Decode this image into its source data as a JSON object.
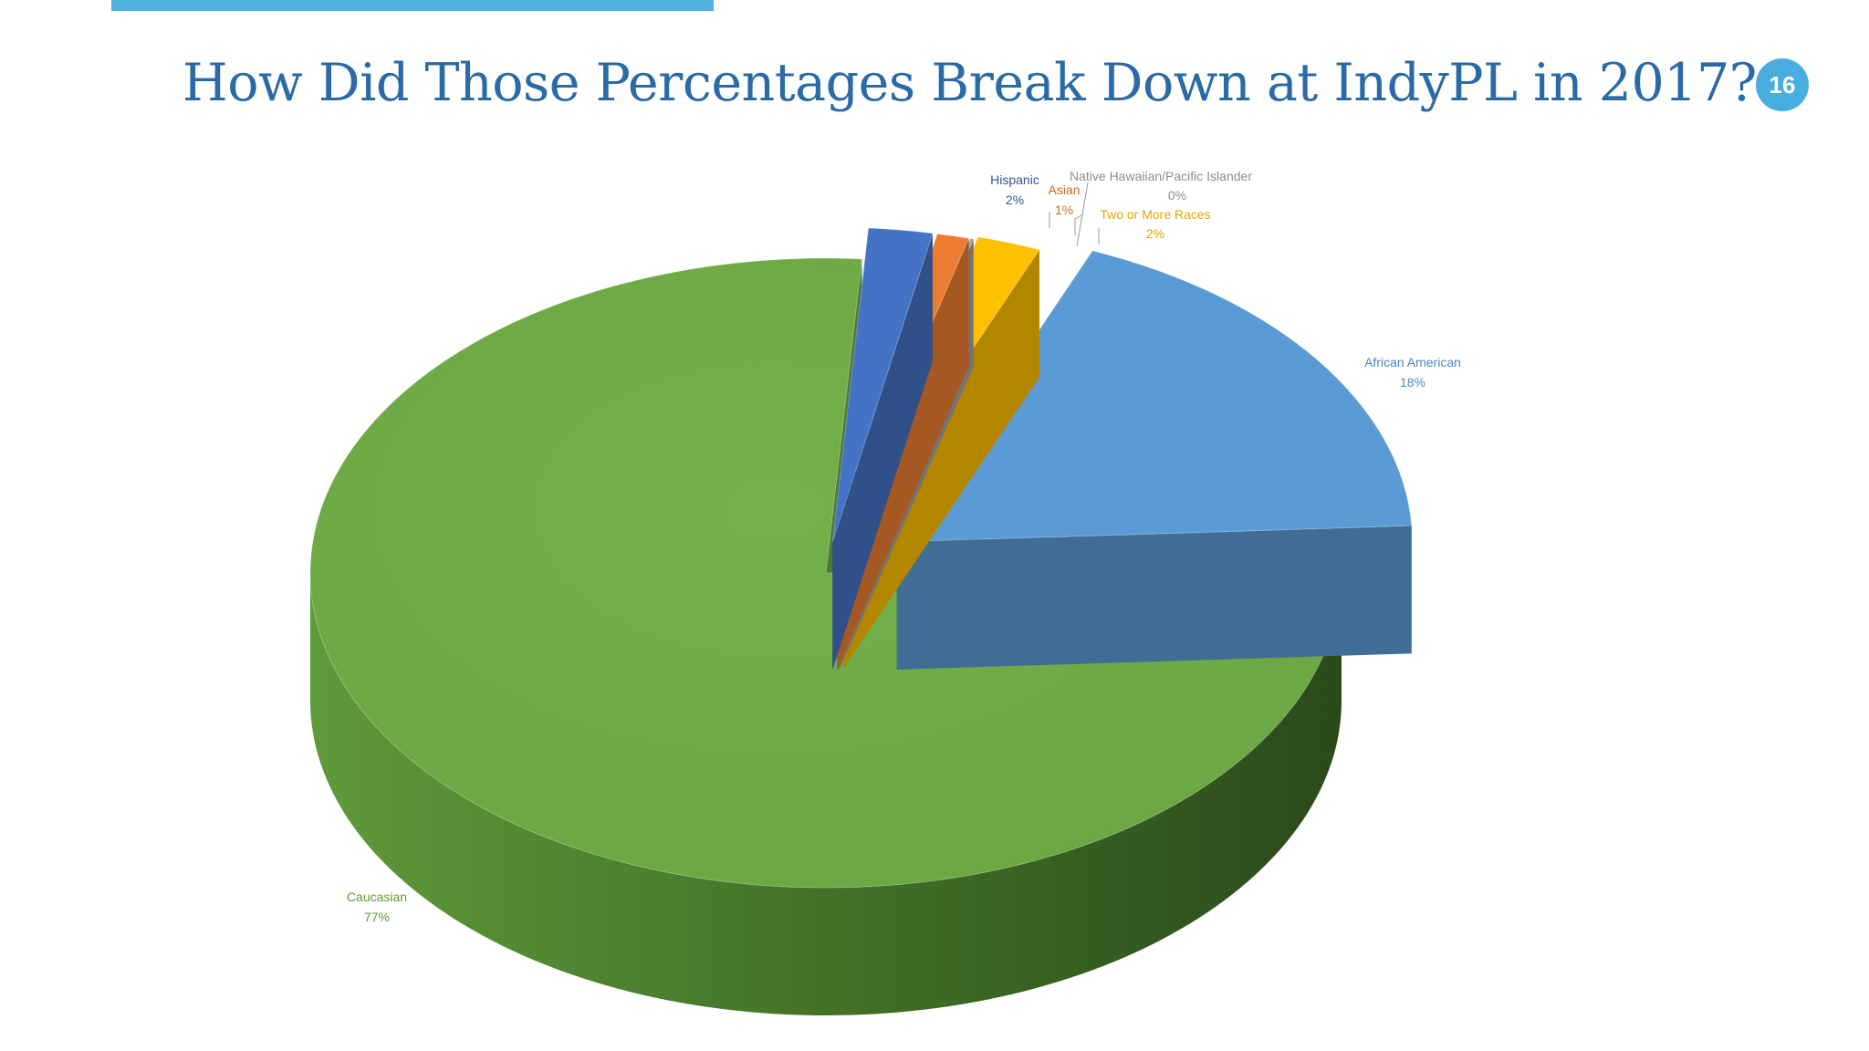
{
  "slide": {
    "title": "How Did Those Percentages Break Down at IndyPL in 2017?",
    "number": "16",
    "accent_color": "#4fb3de"
  },
  "chart_data": {
    "type": "pie",
    "title": "",
    "style": "3d-exploded",
    "slices": [
      {
        "name": "Hispanic",
        "value": 2,
        "label": "2%",
        "color": "#4472c4",
        "label_color": "#2f5597"
      },
      {
        "name": "Asian",
        "value": 1,
        "label": "1%",
        "color": "#ed7d31",
        "label_color": "#d0691c"
      },
      {
        "name": "Native Hawaiian/Pacific  Islander",
        "value": 0,
        "label": "0%",
        "color": "#a5a5a5",
        "label_color": "#8c8c8c"
      },
      {
        "name": "Two or More Races",
        "value": 2,
        "label": "2%",
        "color": "#ffc000",
        "label_color": "#e3a700"
      },
      {
        "name": "African American",
        "value": 18,
        "label": "18%",
        "color": "#5b9bd5",
        "label_color": "#4a86c8"
      },
      {
        "name": "Caucasian",
        "value": 77,
        "label": "77%",
        "color": "#70ad47",
        "label_color": "#5e9a34"
      }
    ]
  }
}
